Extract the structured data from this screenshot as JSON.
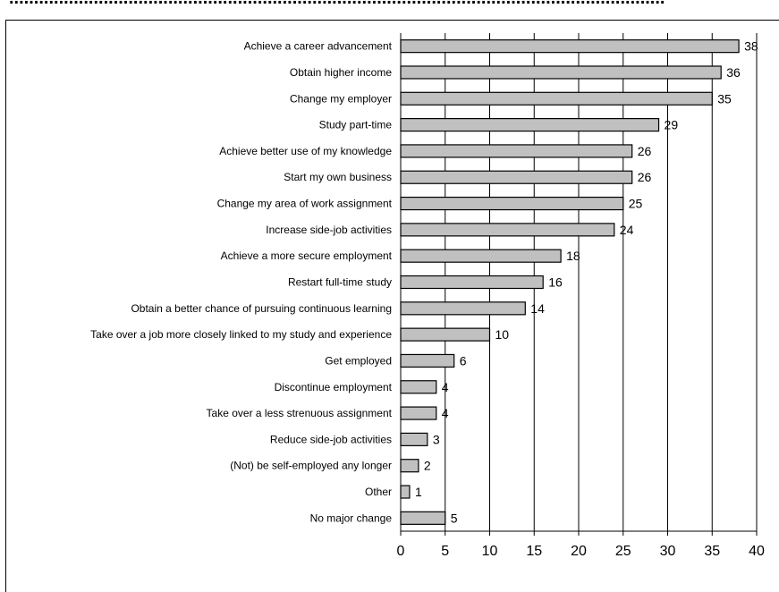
{
  "header": {
    "cut_off_title": "...................................................................................................................................."
  },
  "chart_data": {
    "type": "bar",
    "orientation": "horizontal",
    "categories": [
      "Achieve a career advancement",
      "Obtain higher income",
      "Change my employer",
      "Study part-time",
      "Achieve better use of my knowledge",
      "Start my own business",
      "Change my area of work assignment",
      "Increase side-job activities",
      "Achieve a more secure employment",
      "Restart full-time study",
      "Obtain a better chance of pursuing continuous learning",
      "Take over a job more closely linked to my study and experience",
      "Get employed",
      "Discontinue employment",
      "Take over a less strenuous assignment",
      "Reduce side-job activities",
      "(Not) be self-employed any longer",
      "Other",
      "No major change"
    ],
    "values": [
      38,
      36,
      35,
      29,
      26,
      26,
      25,
      24,
      18,
      16,
      14,
      10,
      6,
      4,
      4,
      3,
      2,
      1,
      5
    ],
    "xlim": [
      0,
      40
    ],
    "xticks": [
      "0",
      "5",
      "10",
      "15",
      "20",
      "25",
      "30",
      "35",
      "40"
    ],
    "grid": "vertical",
    "bar_color": "#c0c0c0",
    "title": "",
    "xlabel": "",
    "ylabel": ""
  }
}
